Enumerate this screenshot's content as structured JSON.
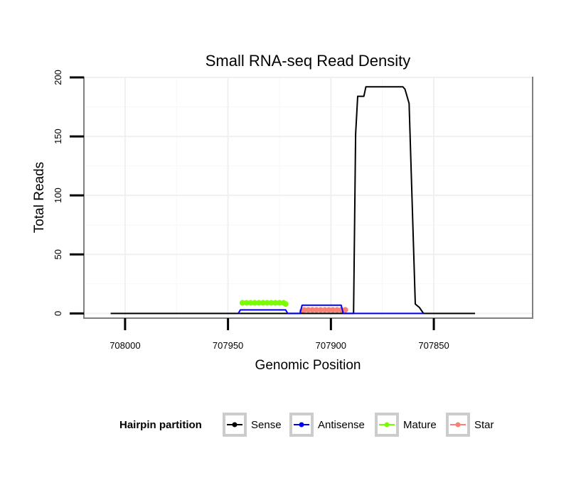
{
  "chart_data": {
    "type": "line",
    "title": "Small RNA-seq Read Density",
    "xlabel": "Genomic Position",
    "ylabel": "Total Reads",
    "xlim": [
      708020,
      707802
    ],
    "ylim": [
      -4,
      200
    ],
    "x_reversed": true,
    "grid": true,
    "x_ticks": [
      708000,
      707950,
      707900,
      707850
    ],
    "x_tick_labels": [
      "708000",
      "707950",
      "707900",
      "707850"
    ],
    "y_ticks": [
      0,
      50,
      100,
      150,
      200
    ],
    "y_tick_labels": [
      "0",
      "50",
      "100",
      "150",
      "200"
    ],
    "legend": {
      "title": "Hairpin partition",
      "position": "bottom"
    },
    "series": [
      {
        "name": "Sense",
        "color": "#000000",
        "marker": false,
        "points": [
          [
            708007,
            0
          ],
          [
            707921,
            0
          ],
          [
            707920,
            0
          ],
          [
            707889,
            0
          ],
          [
            707888,
            152
          ],
          [
            707887,
            184
          ],
          [
            707885,
            184
          ],
          [
            707884,
            184
          ],
          [
            707883,
            192
          ],
          [
            707868,
            192
          ],
          [
            707865,
            192
          ],
          [
            707864,
            190
          ],
          [
            707862,
            178
          ],
          [
            707859,
            8
          ],
          [
            707857,
            5
          ],
          [
            707855,
            0
          ],
          [
            707830,
            0
          ]
        ]
      },
      {
        "name": "Antisense",
        "color": "#0000ff",
        "marker": false,
        "points": [
          [
            707945,
            0
          ],
          [
            707944,
            3
          ],
          [
            707943,
            3
          ],
          [
            707922,
            3
          ],
          [
            707921,
            0
          ],
          [
            707915,
            0
          ],
          [
            707914,
            7
          ],
          [
            707913,
            7
          ],
          [
            707895,
            7
          ],
          [
            707894,
            0
          ],
          [
            707855,
            0
          ]
        ]
      },
      {
        "name": "Mature",
        "color": "#7cfc00",
        "marker": true,
        "points": [
          [
            707943,
            9
          ],
          [
            707941,
            9
          ],
          [
            707939,
            9
          ],
          [
            707937,
            9
          ],
          [
            707935,
            9
          ],
          [
            707933,
            9
          ],
          [
            707931,
            9
          ],
          [
            707929,
            9
          ],
          [
            707927,
            9
          ],
          [
            707925,
            9
          ],
          [
            707923,
            9
          ],
          [
            707922,
            8
          ]
        ]
      },
      {
        "name": "Star",
        "color": "#fa8072",
        "marker": true,
        "points": [
          [
            707914,
            2
          ],
          [
            707913,
            3
          ],
          [
            707911,
            3
          ],
          [
            707909,
            3
          ],
          [
            707907,
            3
          ],
          [
            707905,
            3
          ],
          [
            707903,
            3
          ],
          [
            707901,
            3
          ],
          [
            707899,
            3
          ],
          [
            707897,
            3
          ],
          [
            707895,
            3
          ],
          [
            707893,
            3
          ]
        ]
      }
    ]
  }
}
